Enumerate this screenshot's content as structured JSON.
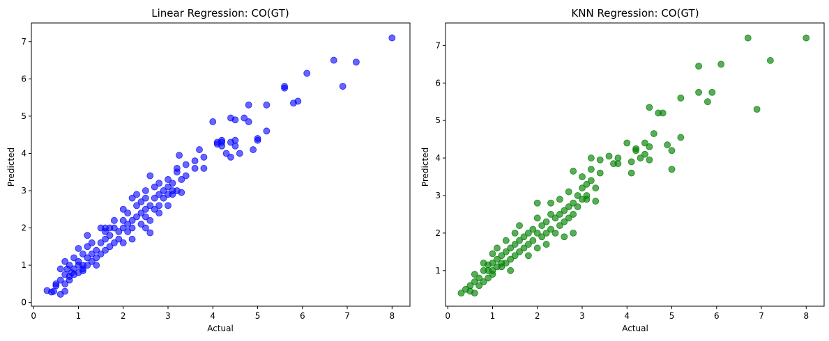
{
  "chart_data": [
    {
      "type": "scatter",
      "title": "Linear Regression: CO(GT)",
      "xlabel": "Actual",
      "ylabel": "Predicted",
      "xlim": [
        -0.05,
        8.4
      ],
      "ylim": [
        -0.1,
        7.5
      ],
      "xticks": [
        "0",
        "1",
        "2",
        "3",
        "4",
        "5",
        "6",
        "7",
        "8"
      ],
      "yticks": [
        "0",
        "1",
        "2",
        "3",
        "4",
        "5",
        "6",
        "7"
      ],
      "grid": false,
      "color": "#0000ff",
      "opacity": 0.6,
      "points": [
        [
          0.3,
          0.32
        ],
        [
          0.4,
          0.28
        ],
        [
          0.45,
          0.3
        ],
        [
          0.5,
          0.45
        ],
        [
          0.5,
          0.5
        ],
        [
          0.6,
          0.22
        ],
        [
          0.6,
          0.6
        ],
        [
          0.6,
          0.9
        ],
        [
          0.7,
          0.3
        ],
        [
          0.7,
          0.5
        ],
        [
          0.7,
          0.75
        ],
        [
          0.7,
          1.1
        ],
        [
          0.75,
          0.9
        ],
        [
          0.8,
          0.6
        ],
        [
          0.8,
          0.7
        ],
        [
          0.8,
          1.0
        ],
        [
          0.85,
          0.8
        ],
        [
          0.9,
          0.75
        ],
        [
          0.9,
          0.9
        ],
        [
          0.9,
          1.2
        ],
        [
          1.0,
          0.8
        ],
        [
          1.0,
          1.0
        ],
        [
          1.0,
          1.1
        ],
        [
          1.0,
          1.45
        ],
        [
          1.1,
          0.9
        ],
        [
          1.1,
          1.0
        ],
        [
          1.1,
          1.3
        ],
        [
          1.1,
          0.85
        ],
        [
          1.2,
          1.0
        ],
        [
          1.2,
          1.2
        ],
        [
          1.2,
          1.5
        ],
        [
          1.2,
          1.8
        ],
        [
          1.3,
          1.1
        ],
        [
          1.3,
          1.3
        ],
        [
          1.3,
          1.6
        ],
        [
          1.4,
          1.2
        ],
        [
          1.4,
          1.4
        ],
        [
          1.4,
          1.0
        ],
        [
          1.5,
          1.3
        ],
        [
          1.5,
          1.6
        ],
        [
          1.5,
          2.0
        ],
        [
          1.6,
          1.4
        ],
        [
          1.6,
          1.7
        ],
        [
          1.6,
          1.9
        ],
        [
          1.6,
          2.0
        ],
        [
          1.7,
          1.5
        ],
        [
          1.7,
          1.8
        ],
        [
          1.7,
          2.0
        ],
        [
          1.8,
          1.6
        ],
        [
          1.8,
          2.0
        ],
        [
          1.8,
          2.2
        ],
        [
          1.9,
          1.7
        ],
        [
          1.9,
          1.9
        ],
        [
          2.0,
          1.6
        ],
        [
          2.0,
          2.0
        ],
        [
          2.0,
          2.2
        ],
        [
          2.0,
          2.5
        ],
        [
          2.1,
          1.9
        ],
        [
          2.1,
          2.1
        ],
        [
          2.1,
          2.4
        ],
        [
          2.2,
          2.0
        ],
        [
          2.2,
          2.2
        ],
        [
          2.2,
          2.8
        ],
        [
          2.2,
          1.7
        ],
        [
          2.3,
          2.3
        ],
        [
          2.3,
          2.6
        ],
        [
          2.3,
          2.9
        ],
        [
          2.4,
          2.1
        ],
        [
          2.4,
          2.4
        ],
        [
          2.4,
          2.7
        ],
        [
          2.5,
          2.3
        ],
        [
          2.5,
          2.5
        ],
        [
          2.5,
          2.8
        ],
        [
          2.5,
          3.0
        ],
        [
          2.5,
          2.0
        ],
        [
          2.6,
          1.87
        ],
        [
          2.6,
          2.2
        ],
        [
          2.6,
          3.4
        ],
        [
          2.6,
          2.6
        ],
        [
          2.7,
          2.5
        ],
        [
          2.7,
          2.8
        ],
        [
          2.7,
          3.1
        ],
        [
          2.8,
          2.6
        ],
        [
          2.8,
          2.9
        ],
        [
          2.8,
          3.2
        ],
        [
          2.8,
          2.4
        ],
        [
          2.9,
          2.8
        ],
        [
          2.9,
          3.0
        ],
        [
          3.0,
          2.9
        ],
        [
          3.0,
          3.1
        ],
        [
          3.0,
          3.3
        ],
        [
          3.0,
          2.6
        ],
        [
          3.1,
          3.0
        ],
        [
          3.1,
          3.2
        ],
        [
          3.1,
          2.9
        ],
        [
          3.2,
          3.5
        ],
        [
          3.2,
          3.6
        ],
        [
          3.2,
          3.0
        ],
        [
          3.25,
          3.95
        ],
        [
          3.3,
          3.3
        ],
        [
          3.3,
          2.95
        ],
        [
          3.4,
          3.4
        ],
        [
          3.4,
          3.7
        ],
        [
          3.6,
          3.6
        ],
        [
          3.6,
          3.8
        ],
        [
          3.7,
          4.1
        ],
        [
          3.8,
          3.6
        ],
        [
          3.8,
          3.9
        ],
        [
          4.0,
          4.85
        ],
        [
          4.1,
          4.25
        ],
        [
          4.1,
          4.3
        ],
        [
          4.2,
          4.2
        ],
        [
          4.2,
          4.35
        ],
        [
          4.2,
          4.3
        ],
        [
          4.3,
          4.0
        ],
        [
          4.4,
          4.3
        ],
        [
          4.4,
          3.9
        ],
        [
          4.4,
          4.95
        ],
        [
          4.5,
          4.9
        ],
        [
          4.5,
          4.35
        ],
        [
          4.5,
          4.2
        ],
        [
          4.6,
          4.0
        ],
        [
          4.7,
          4.95
        ],
        [
          4.8,
          4.85
        ],
        [
          4.8,
          5.3
        ],
        [
          4.9,
          4.1
        ],
        [
          5.0,
          4.35
        ],
        [
          5.0,
          4.4
        ],
        [
          5.2,
          4.6
        ],
        [
          5.2,
          5.3
        ],
        [
          5.6,
          5.75
        ],
        [
          5.6,
          5.8
        ],
        [
          5.8,
          5.35
        ],
        [
          5.9,
          5.4
        ],
        [
          6.1,
          6.15
        ],
        [
          6.7,
          6.5
        ],
        [
          6.9,
          5.8
        ],
        [
          7.2,
          6.45
        ],
        [
          8.0,
          7.1
        ]
      ]
    },
    {
      "type": "scatter",
      "title": "KNN Regression: CO(GT)",
      "xlabel": "Actual",
      "ylabel": "Predicted",
      "xlim": [
        -0.05,
        8.4
      ],
      "ylim": [
        0.05,
        7.6
      ],
      "xticks": [
        "0",
        "1",
        "2",
        "3",
        "4",
        "5",
        "6",
        "7",
        "8"
      ],
      "yticks": [
        "1",
        "2",
        "3",
        "4",
        "5",
        "6",
        "7"
      ],
      "grid": false,
      "color": "#008000",
      "opacity": 0.65,
      "points": [
        [
          0.3,
          0.4
        ],
        [
          0.4,
          0.5
        ],
        [
          0.5,
          0.6
        ],
        [
          0.5,
          0.45
        ],
        [
          0.6,
          0.7
        ],
        [
          0.6,
          0.4
        ],
        [
          0.6,
          0.9
        ],
        [
          0.7,
          0.8
        ],
        [
          0.7,
          0.6
        ],
        [
          0.8,
          0.7
        ],
        [
          0.8,
          1.0
        ],
        [
          0.8,
          1.2
        ],
        [
          0.9,
          0.8
        ],
        [
          0.9,
          1.0
        ],
        [
          0.9,
          1.15
        ],
        [
          1.0,
          1.0
        ],
        [
          1.0,
          1.2
        ],
        [
          1.0,
          1.45
        ],
        [
          1.0,
          0.9
        ],
        [
          1.1,
          1.1
        ],
        [
          1.1,
          1.3
        ],
        [
          1.1,
          1.6
        ],
        [
          1.2,
          1.1
        ],
        [
          1.2,
          1.4
        ],
        [
          1.2,
          1.2
        ],
        [
          1.3,
          1.2
        ],
        [
          1.3,
          1.5
        ],
        [
          1.3,
          1.8
        ],
        [
          1.4,
          1.3
        ],
        [
          1.4,
          1.6
        ],
        [
          1.4,
          1.0
        ],
        [
          1.5,
          1.4
        ],
        [
          1.5,
          1.7
        ],
        [
          1.5,
          2.0
        ],
        [
          1.6,
          1.5
        ],
        [
          1.6,
          1.8
        ],
        [
          1.6,
          2.2
        ],
        [
          1.7,
          1.6
        ],
        [
          1.7,
          1.9
        ],
        [
          1.8,
          1.7
        ],
        [
          1.8,
          2.0
        ],
        [
          1.8,
          1.4
        ],
        [
          1.9,
          1.8
        ],
        [
          1.9,
          2.1
        ],
        [
          2.0,
          1.6
        ],
        [
          2.0,
          2.0
        ],
        [
          2.0,
          2.4
        ],
        [
          2.0,
          2.8
        ],
        [
          2.1,
          1.9
        ],
        [
          2.1,
          2.2
        ],
        [
          2.2,
          2.0
        ],
        [
          2.2,
          2.3
        ],
        [
          2.2,
          1.7
        ],
        [
          2.3,
          2.1
        ],
        [
          2.3,
          2.5
        ],
        [
          2.3,
          2.8
        ],
        [
          2.4,
          2.0
        ],
        [
          2.4,
          2.4
        ],
        [
          2.5,
          2.2
        ],
        [
          2.5,
          2.5
        ],
        [
          2.5,
          2.9
        ],
        [
          2.6,
          2.3
        ],
        [
          2.6,
          2.6
        ],
        [
          2.6,
          1.9
        ],
        [
          2.7,
          2.4
        ],
        [
          2.7,
          2.7
        ],
        [
          2.7,
          3.1
        ],
        [
          2.8,
          2.5
        ],
        [
          2.8,
          2.8
        ],
        [
          2.8,
          3.65
        ],
        [
          2.8,
          2.0
        ],
        [
          2.9,
          2.7
        ],
        [
          2.9,
          3.0
        ],
        [
          3.0,
          2.9
        ],
        [
          3.0,
          3.2
        ],
        [
          3.0,
          3.5
        ],
        [
          3.1,
          3.3
        ],
        [
          3.1,
          2.9
        ],
        [
          3.1,
          3.0
        ],
        [
          3.2,
          3.4
        ],
        [
          3.2,
          3.7
        ],
        [
          3.2,
          4.0
        ],
        [
          3.3,
          3.2
        ],
        [
          3.3,
          2.85
        ],
        [
          3.4,
          3.6
        ],
        [
          3.4,
          3.95
        ],
        [
          3.6,
          4.05
        ],
        [
          3.7,
          3.85
        ],
        [
          3.8,
          4.0
        ],
        [
          3.8,
          3.85
        ],
        [
          4.0,
          4.4
        ],
        [
          4.1,
          3.6
        ],
        [
          4.1,
          3.9
        ],
        [
          4.2,
          4.2
        ],
        [
          4.2,
          4.25
        ],
        [
          4.3,
          4.0
        ],
        [
          4.4,
          4.4
        ],
        [
          4.4,
          4.1
        ],
        [
          4.5,
          4.3
        ],
        [
          4.5,
          5.35
        ],
        [
          4.5,
          3.95
        ],
        [
          4.6,
          4.65
        ],
        [
          4.7,
          5.2
        ],
        [
          4.8,
          5.2
        ],
        [
          4.9,
          4.35
        ],
        [
          5.0,
          4.2
        ],
        [
          5.0,
          3.7
        ],
        [
          5.2,
          5.6
        ],
        [
          5.2,
          4.55
        ],
        [
          5.6,
          6.45
        ],
        [
          5.6,
          5.75
        ],
        [
          5.8,
          5.5
        ],
        [
          5.9,
          5.75
        ],
        [
          6.1,
          6.5
        ],
        [
          6.7,
          7.2
        ],
        [
          6.9,
          5.3
        ],
        [
          7.2,
          6.6
        ],
        [
          8.0,
          7.2
        ]
      ]
    }
  ]
}
